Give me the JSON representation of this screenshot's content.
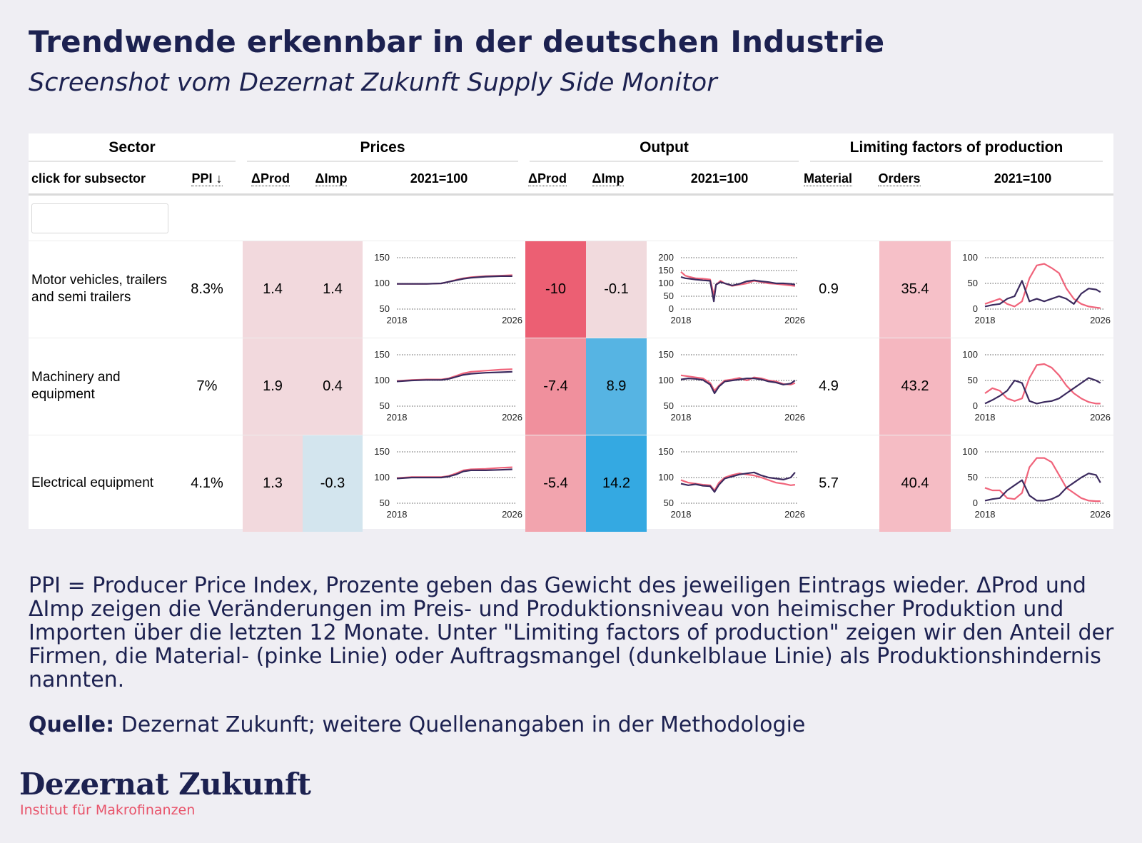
{
  "page": {
    "title": "Trendwende erkennbar in der deutschen Industrie",
    "subtitle": "Screenshot vom Dezernat Zukunft Supply Side Monitor"
  },
  "table": {
    "groups": {
      "sector": "Sector",
      "prices": "Prices",
      "output": "Output",
      "limiting": "Limiting factors of production"
    },
    "subheaders": {
      "sector": "click for subsector",
      "ppi": "PPI ↓",
      "prices_dprod": "ΔProd",
      "prices_dimp": "ΔImp",
      "prices_index": "2021=100",
      "output_dprod": "ΔProd",
      "output_dimp": "ΔImp",
      "output_index": "2021=100",
      "material": "Material",
      "orders": "Orders",
      "limiting_index": "2021=100"
    },
    "filter": {
      "value": ""
    },
    "rows": [
      {
        "sector": "Motor vehicles, trailers and semi trailers",
        "ppi": "8.3%",
        "prices_dprod": "1.4",
        "prices_dimp": "1.4",
        "output_dprod": "-10",
        "output_dimp": "-0.1",
        "material": "0.9",
        "orders": "35.4",
        "colors": {
          "prices_dprod": "#f2d9dd",
          "prices_dimp": "#f2d9dd",
          "output_dprod": "#ec5f73",
          "output_dimp": "#f1dadd",
          "orders": "#f6c0c8"
        }
      },
      {
        "sector": "Machinery and equipment",
        "ppi": "7%",
        "prices_dprod": "1.9",
        "prices_dimp": "0.4",
        "output_dprod": "-7.4",
        "output_dimp": "8.9",
        "material": "4.9",
        "orders": "43.2",
        "colors": {
          "prices_dprod": "#f2d9dd",
          "prices_dimp": "#f2d9dd",
          "output_dprod": "#f0909d",
          "output_dimp": "#56b4e3",
          "orders": "#f5b7c0"
        }
      },
      {
        "sector": "Electrical equipment",
        "ppi": "4.1%",
        "prices_dprod": "1.3",
        "prices_dimp": "-0.3",
        "output_dprod": "-5.4",
        "output_dimp": "14.2",
        "material": "5.7",
        "orders": "40.4",
        "colors": {
          "prices_dprod": "#f2d9dd",
          "prices_dimp": "#d3e5ee",
          "output_dprod": "#f2a4ae",
          "output_dimp": "#34a9e2",
          "orders": "#f5bcc4"
        }
      }
    ]
  },
  "chart_data": [
    {
      "type": "line",
      "row": 0,
      "panel": "prices",
      "x_ticks": [
        "2018",
        "2026"
      ],
      "ylim": [
        50,
        150
      ],
      "y_ticks": [
        50,
        100,
        150
      ],
      "series": [
        {
          "color": "#f0637a",
          "x": [
            2018,
            2019,
            2020,
            2021,
            2021.5,
            2022,
            2022.5,
            2023,
            2024,
            2025,
            2025.8
          ],
          "values": [
            99,
            99,
            99,
            100,
            103,
            107,
            110,
            112,
            114,
            115,
            116
          ]
        },
        {
          "color": "#3b2a5e",
          "x": [
            2018,
            2019,
            2020,
            2021,
            2021.5,
            2022,
            2022.5,
            2023,
            2024,
            2025,
            2025.8
          ],
          "values": [
            99,
            99,
            99,
            100,
            103,
            106,
            109,
            111,
            113,
            114,
            114
          ]
        }
      ]
    },
    {
      "type": "line",
      "row": 0,
      "panel": "output",
      "x_ticks": [
        "2018",
        "2026"
      ],
      "ylim": [
        0,
        200
      ],
      "y_ticks": [
        0,
        50,
        100,
        150,
        200
      ],
      "series": [
        {
          "color": "#f0637a",
          "x": [
            2018,
            2018.3,
            2018.6,
            2019,
            2019.5,
            2020,
            2020.25,
            2020.4,
            2020.7,
            2021,
            2021.5,
            2022,
            2022.5,
            2023,
            2023.5,
            2024,
            2024.5,
            2025,
            2025.5,
            2025.8
          ],
          "values": [
            145,
            130,
            125,
            120,
            118,
            115,
            55,
            95,
            110,
            100,
            90,
            95,
            100,
            110,
            105,
            100,
            98,
            95,
            92,
            90
          ]
        },
        {
          "color": "#3b2a5e",
          "x": [
            2018,
            2018.3,
            2018.6,
            2019,
            2019.5,
            2020,
            2020.25,
            2020.4,
            2020.7,
            2021,
            2021.5,
            2022,
            2022.5,
            2023,
            2023.5,
            2024,
            2024.5,
            2025,
            2025.5,
            2025.8
          ],
          "values": [
            125,
            120,
            118,
            115,
            112,
            110,
            30,
            95,
            105,
            100,
            92,
            98,
            108,
            112,
            108,
            105,
            100,
            100,
            98,
            95
          ]
        }
      ]
    },
    {
      "type": "line",
      "row": 0,
      "panel": "limiting",
      "x_ticks": [
        "2018",
        "2026"
      ],
      "ylim": [
        0,
        100
      ],
      "y_ticks": [
        0,
        50,
        100
      ],
      "series": [
        {
          "color": "#f0637a",
          "x": [
            2018,
            2018.5,
            2019,
            2019.5,
            2020,
            2020.5,
            2021,
            2021.5,
            2022,
            2022.5,
            2023,
            2023.5,
            2024,
            2024.5,
            2025,
            2025.5,
            2025.8
          ],
          "values": [
            10,
            15,
            20,
            10,
            5,
            15,
            60,
            85,
            88,
            80,
            70,
            40,
            20,
            10,
            5,
            3,
            2
          ]
        },
        {
          "color": "#3b2a5e",
          "x": [
            2018,
            2018.5,
            2019,
            2019.5,
            2020,
            2020.5,
            2021,
            2021.5,
            2022,
            2022.5,
            2023,
            2023.5,
            2024,
            2024.5,
            2025,
            2025.5,
            2025.8
          ],
          "values": [
            5,
            8,
            10,
            20,
            25,
            55,
            15,
            20,
            15,
            20,
            25,
            20,
            10,
            30,
            40,
            38,
            33
          ]
        }
      ]
    },
    {
      "type": "line",
      "row": 1,
      "panel": "prices",
      "x_ticks": [
        "2018",
        "2026"
      ],
      "ylim": [
        50,
        150
      ],
      "y_ticks": [
        50,
        100,
        150
      ],
      "series": [
        {
          "color": "#f0637a",
          "x": [
            2018,
            2019,
            2020,
            2021,
            2021.5,
            2022,
            2022.5,
            2023,
            2024,
            2025,
            2025.8
          ],
          "values": [
            99,
            101,
            102,
            102,
            104,
            109,
            114,
            117,
            119,
            121,
            122
          ]
        },
        {
          "color": "#3b2a5e",
          "x": [
            2018,
            2019,
            2020,
            2021,
            2021.5,
            2022,
            2022.5,
            2023,
            2024,
            2025,
            2025.8
          ],
          "values": [
            98,
            100,
            101,
            101,
            103,
            107,
            111,
            113,
            115,
            116,
            117
          ]
        }
      ]
    },
    {
      "type": "line",
      "row": 1,
      "panel": "output",
      "x_ticks": [
        "2018",
        "2026"
      ],
      "ylim": [
        50,
        150
      ],
      "y_ticks": [
        50,
        100,
        150
      ],
      "series": [
        {
          "color": "#f0637a",
          "x": [
            2018,
            2018.5,
            2019,
            2019.5,
            2020,
            2020.3,
            2020.6,
            2021,
            2021.5,
            2022,
            2022.5,
            2023,
            2023.5,
            2024,
            2024.5,
            2025,
            2025.5,
            2025.8
          ],
          "values": [
            110,
            108,
            106,
            104,
            95,
            80,
            90,
            100,
            102,
            105,
            100,
            106,
            104,
            100,
            98,
            93,
            92,
            95
          ]
        },
        {
          "color": "#3b2a5e",
          "x": [
            2018,
            2018.5,
            2019,
            2019.5,
            2020,
            2020.3,
            2020.6,
            2021,
            2021.5,
            2022,
            2022.5,
            2023,
            2023.5,
            2024,
            2024.5,
            2025,
            2025.5,
            2025.8
          ],
          "values": [
            102,
            104,
            103,
            101,
            92,
            75,
            88,
            98,
            100,
            102,
            104,
            104,
            102,
            98,
            96,
            92,
            94,
            100
          ]
        }
      ]
    },
    {
      "type": "line",
      "row": 1,
      "panel": "limiting",
      "x_ticks": [
        "2018",
        "2026"
      ],
      "ylim": [
        0,
        100
      ],
      "y_ticks": [
        0,
        50,
        100
      ],
      "series": [
        {
          "color": "#f0637a",
          "x": [
            2018,
            2018.5,
            2019,
            2019.5,
            2020,
            2020.5,
            2021,
            2021.5,
            2022,
            2022.5,
            2023,
            2023.5,
            2024,
            2024.5,
            2025,
            2025.5,
            2025.8
          ],
          "values": [
            25,
            35,
            30,
            15,
            10,
            15,
            55,
            80,
            82,
            75,
            60,
            40,
            25,
            15,
            8,
            5,
            5
          ]
        },
        {
          "color": "#3b2a5e",
          "x": [
            2018,
            2018.5,
            2019,
            2019.5,
            2020,
            2020.5,
            2021,
            2021.5,
            2022,
            2022.5,
            2023,
            2023.5,
            2024,
            2024.5,
            2025,
            2025.5,
            2025.8
          ],
          "values": [
            5,
            12,
            20,
            30,
            50,
            45,
            10,
            5,
            8,
            10,
            15,
            25,
            35,
            45,
            55,
            50,
            45
          ]
        }
      ]
    },
    {
      "type": "line",
      "row": 2,
      "panel": "prices",
      "x_ticks": [
        "2018",
        "2026"
      ],
      "ylim": [
        50,
        150
      ],
      "y_ticks": [
        50,
        100,
        150
      ],
      "series": [
        {
          "color": "#f0637a",
          "x": [
            2018,
            2019,
            2020,
            2021,
            2021.5,
            2022,
            2022.5,
            2023,
            2024,
            2025,
            2025.8
          ],
          "values": [
            99,
            101,
            101,
            101,
            103,
            108,
            114,
            116,
            117,
            119,
            120
          ]
        },
        {
          "color": "#3b2a5e",
          "x": [
            2018,
            2019,
            2020,
            2021,
            2021.5,
            2022,
            2022.5,
            2023,
            2024,
            2025,
            2025.8
          ],
          "values": [
            98,
            100,
            100,
            100,
            102,
            106,
            112,
            114,
            114,
            115,
            116
          ]
        }
      ]
    },
    {
      "type": "line",
      "row": 2,
      "panel": "output",
      "x_ticks": [
        "2018",
        "2026"
      ],
      "ylim": [
        50,
        150
      ],
      "y_ticks": [
        50,
        100,
        150
      ],
      "series": [
        {
          "color": "#f0637a",
          "x": [
            2018,
            2018.5,
            2019,
            2019.5,
            2020,
            2020.3,
            2020.6,
            2021,
            2021.5,
            2022,
            2022.5,
            2023,
            2023.5,
            2024,
            2024.5,
            2025,
            2025.5,
            2025.8
          ],
          "values": [
            95,
            90,
            88,
            86,
            85,
            75,
            90,
            100,
            105,
            108,
            106,
            104,
            100,
            95,
            90,
            88,
            85,
            86
          ]
        },
        {
          "color": "#3b2a5e",
          "x": [
            2018,
            2018.5,
            2019,
            2019.5,
            2020,
            2020.3,
            2020.6,
            2021,
            2021.5,
            2022,
            2022.5,
            2023,
            2023.5,
            2024,
            2024.5,
            2025,
            2025.5,
            2025.8
          ],
          "values": [
            88,
            85,
            87,
            84,
            83,
            72,
            86,
            98,
            102,
            106,
            108,
            110,
            104,
            100,
            98,
            96,
            100,
            110
          ]
        }
      ]
    },
    {
      "type": "line",
      "row": 2,
      "panel": "limiting",
      "x_ticks": [
        "2018",
        "2026"
      ],
      "ylim": [
        0,
        100
      ],
      "y_ticks": [
        0,
        50,
        100
      ],
      "series": [
        {
          "color": "#f0637a",
          "x": [
            2018,
            2018.5,
            2019,
            2019.5,
            2020,
            2020.5,
            2021,
            2021.5,
            2022,
            2022.5,
            2023,
            2023.5,
            2024,
            2024.5,
            2025,
            2025.5,
            2025.8
          ],
          "values": [
            30,
            25,
            25,
            10,
            8,
            20,
            70,
            88,
            88,
            80,
            55,
            30,
            20,
            10,
            5,
            4,
            4
          ]
        },
        {
          "color": "#3b2a5e",
          "x": [
            2018,
            2018.5,
            2019,
            2019.5,
            2020,
            2020.5,
            2021,
            2021.5,
            2022,
            2022.5,
            2023,
            2023.5,
            2024,
            2024.5,
            2025,
            2025.5,
            2025.8
          ],
          "values": [
            5,
            8,
            10,
            25,
            35,
            45,
            15,
            5,
            5,
            8,
            15,
            30,
            40,
            50,
            58,
            55,
            40
          ]
        }
      ]
    }
  ],
  "notes": "PPI = Producer Price Index, Prozente geben das Gewicht des jeweiligen Eintrags wieder. ΔProd und ΔImp zeigen die Veränderungen im Preis- und Produktionsniveau von heimischer Produktion und Importen über die letzten 12 Monate. Unter \"Limiting factors of production\" zeigen wir den Anteil der Firmen, die Material- (pinke Linie) oder Auftragsmangel (dunkelblaue Linie) als Produktionshindernis nannten.",
  "source": {
    "label": "Quelle:",
    "text": " Dezernat Zukunft; weitere Quellenangaben in der Methodologie"
  },
  "logo": {
    "name": "Dezernat Zukunft",
    "tagline": "Institut für Makrofinanzen"
  }
}
